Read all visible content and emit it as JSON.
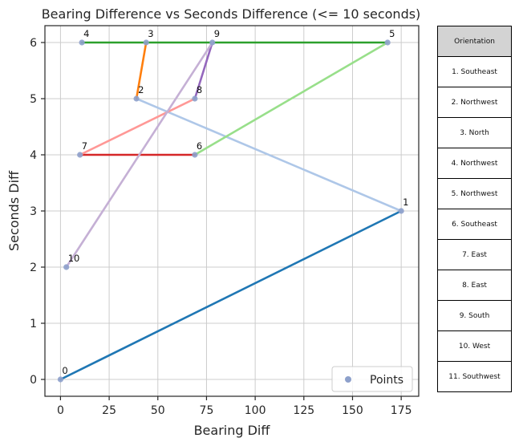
{
  "chart_data": {
    "type": "line",
    "title": "Bearing Difference vs Seconds Difference (<= 10 seconds)",
    "xlabel": "Bearing Diff",
    "ylabel": "Seconds Diff",
    "xlim": [
      -8,
      184
    ],
    "ylim": [
      -0.3,
      6.3
    ],
    "xticks": [
      0,
      25,
      50,
      75,
      100,
      125,
      150,
      175
    ],
    "yticks": [
      0,
      1,
      2,
      3,
      4,
      5,
      6
    ],
    "grid": true,
    "legend": {
      "label": "Points",
      "position": "lower-right"
    },
    "points": [
      {
        "label": "0",
        "x": 0,
        "y": 0
      },
      {
        "label": "1",
        "x": 175,
        "y": 3
      },
      {
        "label": "2",
        "x": 39,
        "y": 5
      },
      {
        "label": "3",
        "x": 44,
        "y": 6
      },
      {
        "label": "4",
        "x": 11,
        "y": 6
      },
      {
        "label": "5",
        "x": 168,
        "y": 6
      },
      {
        "label": "6",
        "x": 69,
        "y": 4
      },
      {
        "label": "7",
        "x": 10,
        "y": 4
      },
      {
        "label": "8",
        "x": 69,
        "y": 5
      },
      {
        "label": "9",
        "x": 78,
        "y": 6
      },
      {
        "label": "10",
        "x": 3,
        "y": 2
      }
    ],
    "segments": [
      {
        "from": 0,
        "to": 1,
        "color": "#1f77b4"
      },
      {
        "from": 1,
        "to": 2,
        "color": "#aec7e8"
      },
      {
        "from": 2,
        "to": 3,
        "color": "#ff7f0e"
      },
      {
        "from": 4,
        "to": 5,
        "color": "#2ca02c"
      },
      {
        "from": 5,
        "to": 6,
        "color": "#98df8a"
      },
      {
        "from": 6,
        "to": 7,
        "color": "#d62728"
      },
      {
        "from": 7,
        "to": 8,
        "color": "#ff9896"
      },
      {
        "from": 8,
        "to": 9,
        "color": "#9467bd"
      },
      {
        "from": 9,
        "to": 10,
        "color": "#c5b0d5"
      }
    ],
    "point_color": "#8da0cb"
  },
  "orientation_table": {
    "header": "Orientation",
    "rows": [
      "1. Southeast",
      "2. Northwest",
      "3. North",
      "4. Northwest",
      "5. Northwest",
      "6. Southeast",
      "7. East",
      "8. East",
      "9. South",
      "10. West",
      "11. Southwest"
    ]
  }
}
